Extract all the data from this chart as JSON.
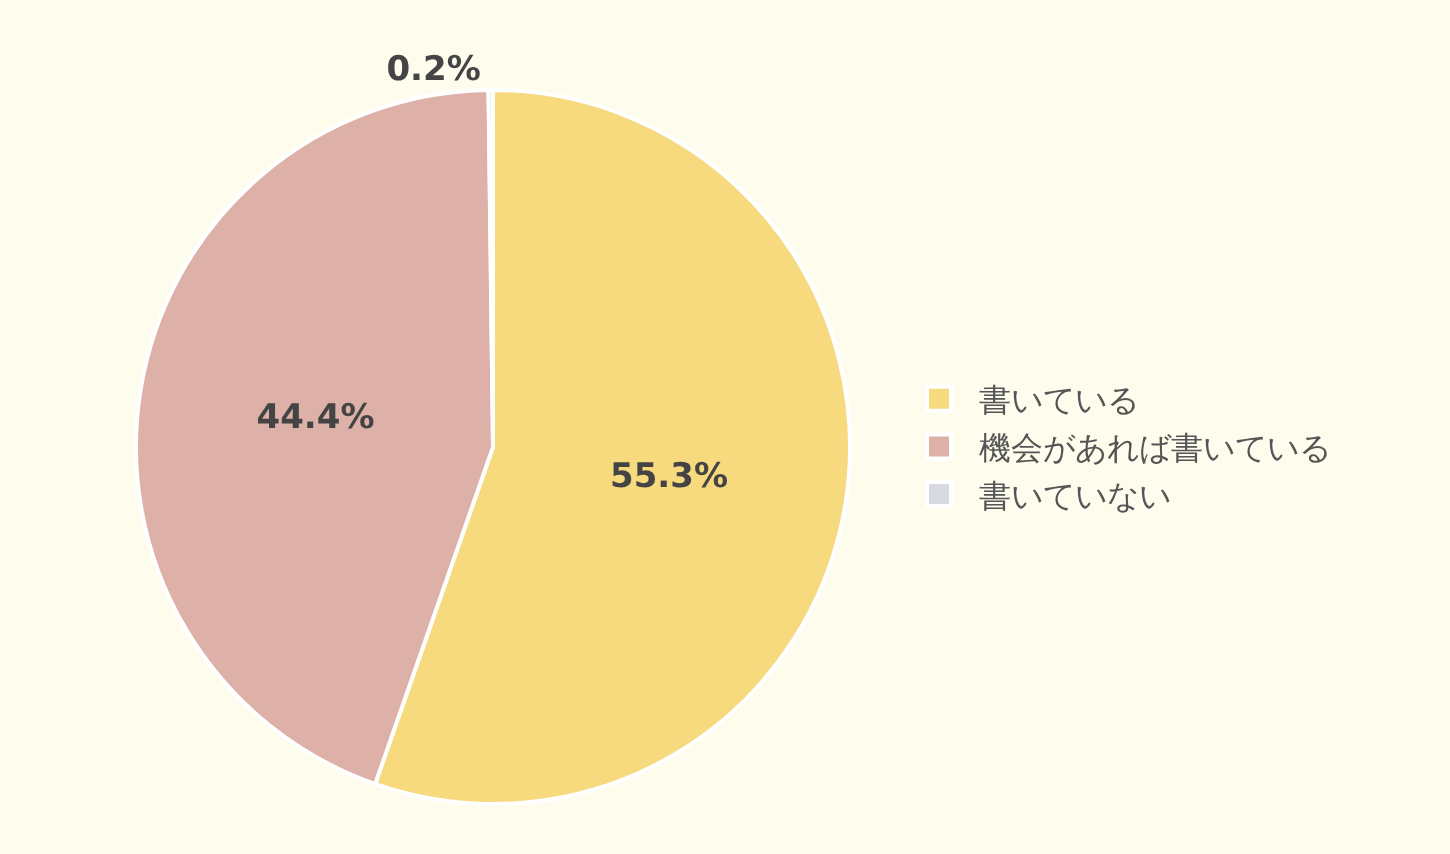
{
  "chart_data": {
    "type": "pie",
    "categories": [
      "書いている",
      "機会があれば書いている",
      "書いていない"
    ],
    "values": [
      55.3,
      44.4,
      0.2
    ],
    "colors": [
      "#f7d97e",
      "#ddb0a8",
      "#d9d9e3"
    ],
    "value_labels": [
      "55.3%",
      "44.4%",
      "0.2%"
    ],
    "legend": "right"
  }
}
